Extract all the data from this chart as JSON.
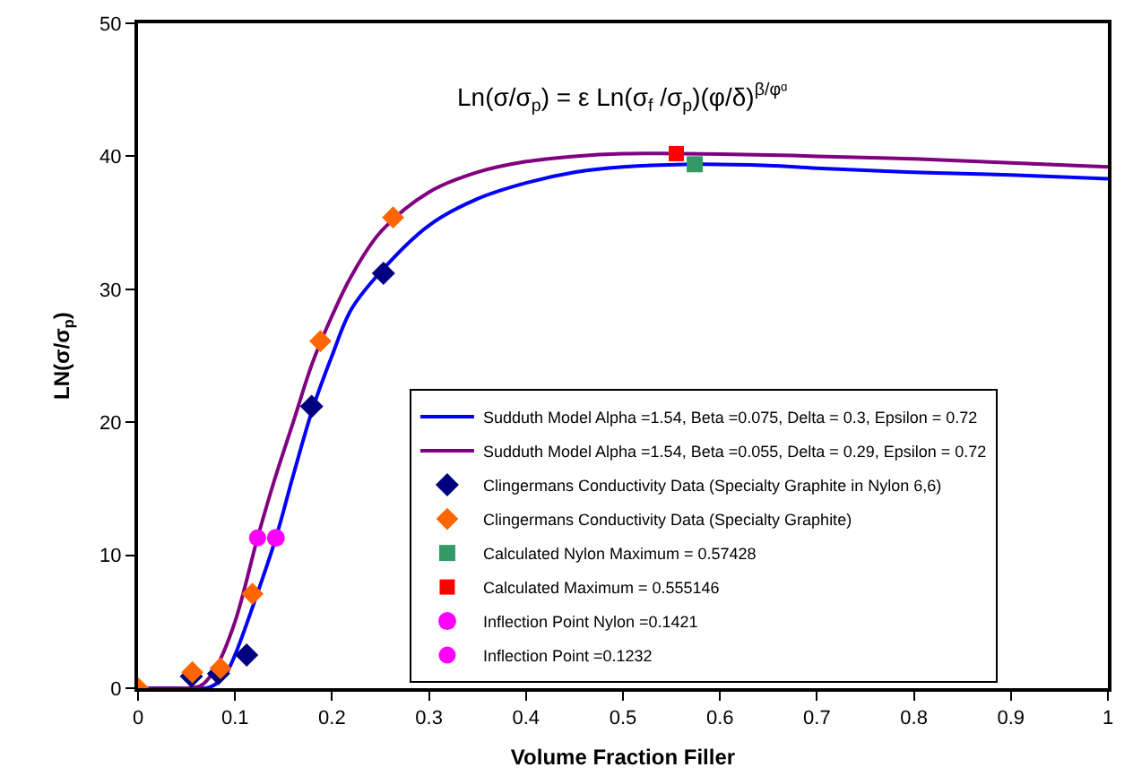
{
  "chart_data": {
    "type": "line",
    "xlabel": "Volume Fraction Filler",
    "ylabel": "LN(σ/σ$_{p}$)",
    "annotations": [
      "Ln(σ/σ$_{p}$) = ε Ln(σ$_{f}$ /σ$_{p}$)(φ/δ)$^{β/φᵅ}$"
    ],
    "xlim": [
      0,
      1
    ],
    "xticks": [
      0,
      0.1,
      0.2,
      0.3,
      0.4,
      0.5,
      0.6,
      0.7,
      0.8,
      0.9,
      1
    ],
    "ylim": [
      0,
      50
    ],
    "yticks": [
      0,
      10,
      20,
      30,
      40,
      50
    ],
    "grid": false,
    "legend": "right",
    "series": [
      {
        "name": "Sudduth Model Alpha =1.54, Beta =0.075, Delta = 0.3, Epsilon = 0.72",
        "marker": "none",
        "line_style": "solid",
        "color": "#0000ff",
        "x": [
          0,
          0.05,
          0.07,
          0.08,
          0.09,
          0.1,
          0.12,
          0.1421,
          0.16,
          0.18,
          0.2,
          0.22,
          0.25,
          0.3,
          0.35,
          0.4,
          0.45,
          0.5,
          0.57428,
          0.65,
          0.7,
          0.8,
          0.9,
          1
        ],
        "values": [
          0,
          0,
          0,
          0.3,
          1,
          2.5,
          6.5,
          11.3,
          16,
          21,
          25,
          28.5,
          31.3,
          34.8,
          36.8,
          38,
          38.8,
          39.2,
          39.4,
          39.3,
          39.1,
          38.8,
          38.6,
          38.3
        ]
      },
      {
        "name": "Sudduth Model Alpha =1.54, Beta =0.055, Delta = 0.29, Epsilon = 0.72",
        "marker": "none",
        "line_style": "solid",
        "color": "#800080",
        "x": [
          0,
          0.05,
          0.065,
          0.08,
          0.1,
          0.1232,
          0.14,
          0.16,
          0.18,
          0.2,
          0.22,
          0.25,
          0.3,
          0.35,
          0.4,
          0.45,
          0.5,
          0.555,
          0.65,
          0.7,
          0.8,
          0.9,
          1
        ],
        "values": [
          0,
          0,
          0.2,
          1.5,
          5,
          11.3,
          15.5,
          20,
          24.5,
          28,
          31,
          34.3,
          37.3,
          38.8,
          39.6,
          40,
          40.2,
          40.2,
          40.1,
          40,
          39.8,
          39.5,
          39.2
        ]
      },
      {
        "name": "Clingermans Conductivity Data (Specialty Graphite in Nylon 6,6)",
        "type": "scatter",
        "marker": "diamond",
        "color": "#000080",
        "x": [
          0.055,
          0.083,
          0.112,
          0.179,
          0.253
        ],
        "values": [
          0.9,
          1.1,
          2.5,
          21.2,
          31.2
        ]
      },
      {
        "name": "Clingermans Conductivity Data (Specialty Graphite)",
        "type": "scatter",
        "marker": "diamond",
        "color": "#ff6600",
        "x": [
          0,
          0.056,
          0.085,
          0.118,
          0.188,
          0.263
        ],
        "values": [
          0,
          1.2,
          1.5,
          7.1,
          26.1,
          35.4
        ]
      },
      {
        "name": "Calculated Nylon Maximum = 0.57428",
        "type": "scatter",
        "marker": "square",
        "color": "#339966",
        "x": [
          0.574
        ],
        "values": [
          39.4
        ]
      },
      {
        "name": "Calculated Maximum = 0.555146",
        "type": "scatter",
        "marker": "square",
        "color": "#ff0000",
        "x": [
          0.555
        ],
        "values": [
          40.2
        ]
      },
      {
        "name": "Inflection Point Nylon =0.1421",
        "type": "scatter",
        "marker": "circle",
        "color": "#ff00ff",
        "x": [
          0.1421
        ],
        "values": [
          11.3
        ]
      },
      {
        "name": "Inflection Point =0.1232",
        "type": "scatter",
        "marker": "circle",
        "color": "#ff00ff",
        "x": [
          0.1232
        ],
        "values": [
          11.3
        ]
      }
    ]
  }
}
